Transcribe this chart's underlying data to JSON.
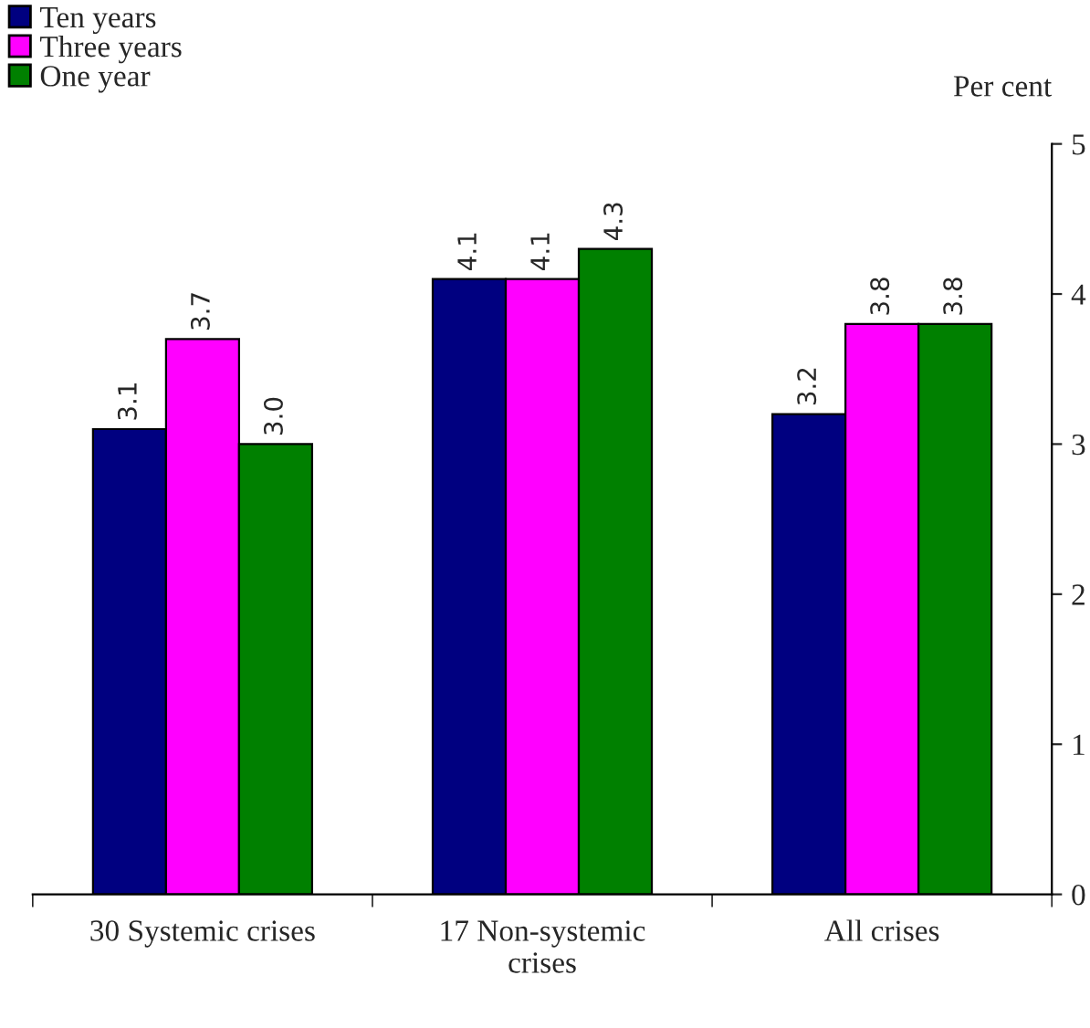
{
  "chart_data": {
    "type": "bar",
    "categories": [
      "30 Systemic crises",
      "17 Non-systemic\ncrises",
      "All crises"
    ],
    "series": [
      {
        "name": "Ten years",
        "color": "#000080",
        "values": [
          3.1,
          4.1,
          3.2
        ],
        "value_labels": [
          "3.1",
          "4.1",
          "3.2"
        ]
      },
      {
        "name": "Three years",
        "color": "#ff00ff",
        "values": [
          3.7,
          4.1,
          3.8
        ],
        "value_labels": [
          "3.7",
          "4.1",
          "3.8"
        ]
      },
      {
        "name": "One year",
        "color": "#008000",
        "values": [
          3.0,
          4.3,
          3.8
        ],
        "value_labels": [
          "3.0",
          "4.3",
          "3.8"
        ]
      }
    ],
    "ylabel": "Per cent",
    "ylim": [
      0,
      5
    ],
    "yticks": [
      0,
      1,
      2,
      3,
      4,
      5
    ],
    "legend": "top left",
    "grid": false
  }
}
